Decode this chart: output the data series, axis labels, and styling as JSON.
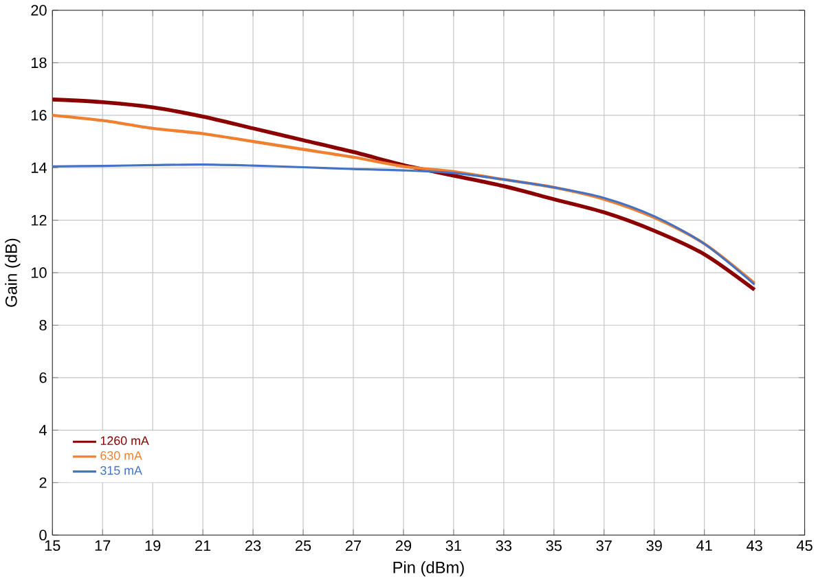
{
  "chart_data": {
    "type": "line",
    "xlabel": "Pin (dBm)",
    "ylabel": "Gain (dB)",
    "x": [
      15,
      17,
      19,
      21,
      23,
      25,
      27,
      29,
      31,
      33,
      35,
      37,
      39,
      41,
      43
    ],
    "series": [
      {
        "name": "1260 mA",
        "color": "#8b0000",
        "values": [
          16.6,
          16.5,
          16.3,
          15.95,
          15.5,
          15.05,
          14.6,
          14.1,
          13.7,
          13.3,
          12.8,
          12.3,
          11.6,
          10.7,
          9.35
        ]
      },
      {
        "name": "630 mA",
        "color": "#f08030",
        "values": [
          16.0,
          15.8,
          15.5,
          15.3,
          15.0,
          14.7,
          14.4,
          14.05,
          13.85,
          13.55,
          13.25,
          12.8,
          12.1,
          11.1,
          9.6
        ]
      },
      {
        "name": "315 mA",
        "color": "#4472c4",
        "values": [
          14.05,
          14.07,
          14.1,
          14.12,
          14.08,
          14.02,
          13.95,
          13.9,
          13.8,
          13.55,
          13.25,
          12.85,
          12.15,
          11.1,
          9.55
        ]
      }
    ],
    "xlim": [
      15,
      45
    ],
    "ylim": [
      0,
      20
    ],
    "xticks": [
      15,
      17,
      19,
      21,
      23,
      25,
      27,
      29,
      31,
      33,
      35,
      37,
      39,
      41,
      43,
      45
    ],
    "yticks": [
      0,
      2,
      4,
      6,
      8,
      10,
      12,
      14,
      16,
      18,
      20
    ],
    "grid": true,
    "legend": "bottom left",
    "marker": "none",
    "line_style": "solid"
  }
}
